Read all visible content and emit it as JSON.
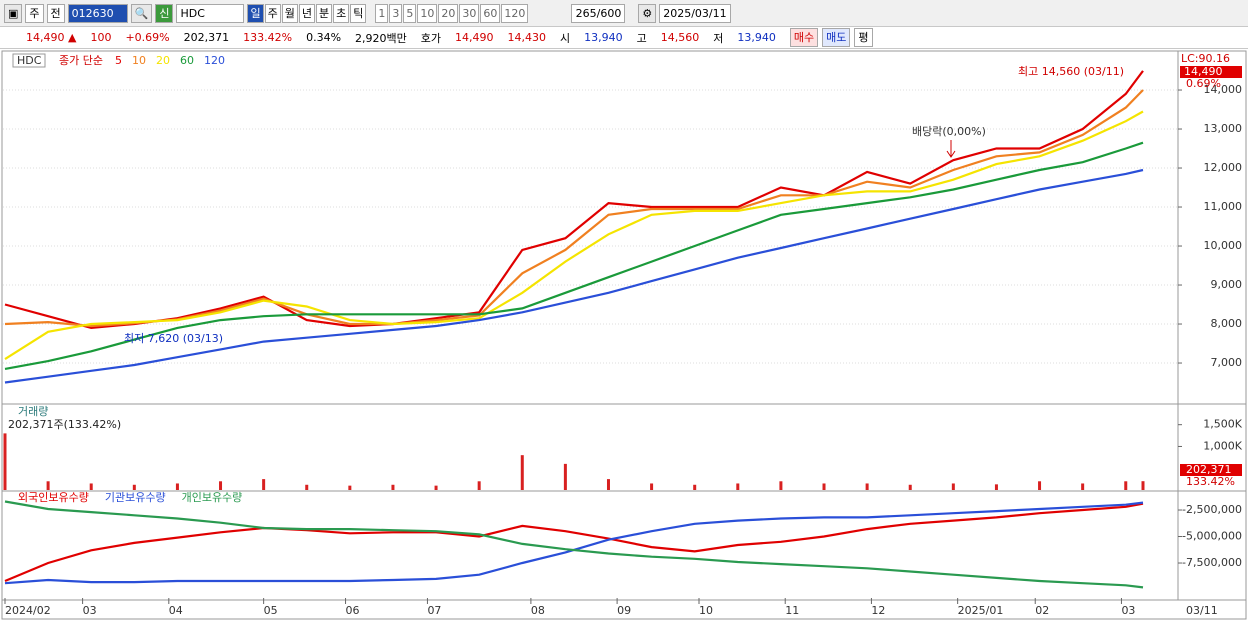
{
  "toolbar": {
    "market": "주",
    "prev": "전",
    "code": "012630",
    "name": "HDC",
    "credit": "신",
    "periods": [
      "일",
      "주",
      "월",
      "년",
      "분",
      "초",
      "틱"
    ],
    "minutes": [
      "1",
      "3",
      "5",
      "10",
      "20",
      "30",
      "60",
      "120"
    ],
    "count": "265/600",
    "date": "2025/03/11"
  },
  "info_bar": {
    "price": "14,490 ▲",
    "change": "100",
    "change_rate": "+0.69%",
    "volume": "202,371",
    "volume_rate": "133.42%",
    "turnover": "0.34%",
    "amount": "2,920백만",
    "quote_label": "호가",
    "ask": "14,490",
    "bid": "14,430",
    "open_label": "시",
    "open": "13,940",
    "high_label": "고",
    "high": "14,560",
    "low_label": "저",
    "low": "13,940",
    "buy": "매수",
    "sell": "매도",
    "avg": "평"
  },
  "chart_data": [
    {
      "type": "line",
      "name": "HDC",
      "legend_title": "종가 단순",
      "lc_label": "LC:90.16",
      "last_label": "14,490",
      "rate_label": "0.69%",
      "annotations": {
        "high": "최고 14,560 (03/11)",
        "low": "최저 7,620 (03/13)",
        "dividend": "배당락(0,00%)"
      },
      "x": [
        0,
        10,
        20,
        30,
        40,
        50,
        60,
        70,
        80,
        90,
        100,
        110,
        120,
        130,
        140,
        150,
        160,
        170,
        180,
        190,
        200,
        210,
        220,
        230,
        240,
        250,
        260,
        264
      ],
      "xlim": [
        0,
        264
      ],
      "ylim": [
        5975,
        14975
      ],
      "grid": true,
      "yticks": [
        {
          "value": 7000,
          "label": "7,000"
        },
        {
          "value": 8000,
          "label": "8,000"
        },
        {
          "value": 9000,
          "label": "9,000"
        },
        {
          "value": 10000,
          "label": "10,000"
        },
        {
          "value": 11000,
          "label": "11,000"
        },
        {
          "value": 12000,
          "label": "12,000"
        },
        {
          "value": 13000,
          "label": "13,000"
        },
        {
          "value": 14000,
          "label": "14,000"
        }
      ],
      "series": [
        {
          "name": "5",
          "color": "#e00000",
          "values": [
            8500,
            8200,
            7900,
            8000,
            8150,
            8400,
            8700,
            8100,
            7950,
            8000,
            8150,
            8300,
            9900,
            10200,
            11100,
            11000,
            11000,
            11000,
            11500,
            11300,
            11900,
            11600,
            12200,
            12500,
            12500,
            13000,
            13900,
            14490
          ]
        },
        {
          "name": "10",
          "color": "#f08020",
          "values": [
            8000,
            8050,
            7950,
            8020,
            8120,
            8350,
            8650,
            8250,
            8000,
            8000,
            8100,
            8220,
            9300,
            9900,
            10800,
            10950,
            10950,
            10950,
            11300,
            11300,
            11650,
            11500,
            11950,
            12300,
            12400,
            12850,
            13550,
            14000
          ]
        },
        {
          "name": "20",
          "color": "#f5e400",
          "values": [
            7100,
            7800,
            8000,
            8050,
            8100,
            8300,
            8600,
            8450,
            8100,
            8000,
            8050,
            8150,
            8800,
            9600,
            10300,
            10800,
            10900,
            10900,
            11100,
            11300,
            11400,
            11400,
            11700,
            12100,
            12300,
            12700,
            13200,
            13450
          ]
        },
        {
          "name": "60",
          "color": "#1a9a3a",
          "values": [
            6850,
            7050,
            7300,
            7600,
            7900,
            8100,
            8200,
            8250,
            8250,
            8250,
            8250,
            8250,
            8400,
            8800,
            9200,
            9600,
            10000,
            10400,
            10800,
            10950,
            11100,
            11250,
            11450,
            11700,
            11950,
            12150,
            12500,
            12650
          ]
        },
        {
          "name": "120",
          "color": "#2a4fd8",
          "values": [
            6500,
            6650,
            6800,
            6950,
            7150,
            7350,
            7550,
            7650,
            7750,
            7850,
            7950,
            8100,
            8300,
            8550,
            8800,
            9100,
            9400,
            9700,
            9950,
            10200,
            10450,
            10700,
            10950,
            11200,
            11450,
            11650,
            11850,
            11950
          ]
        }
      ]
    },
    {
      "type": "bar",
      "title": "거래량",
      "subtitle": "202,371주(133.42%)",
      "last_label": "202,371",
      "rate_label": "133.42%",
      "color": "#d82020",
      "x": [
        0,
        10,
        20,
        30,
        40,
        50,
        60,
        70,
        80,
        90,
        100,
        110,
        120,
        130,
        140,
        150,
        160,
        170,
        180,
        190,
        200,
        210,
        220,
        230,
        240,
        250,
        260,
        264
      ],
      "xlim": [
        0,
        264
      ],
      "ylim": [
        0,
        1952000
      ],
      "yticks": [
        {
          "value": 1000000,
          "label": "1,000K"
        },
        {
          "value": 1500000,
          "label": "1,500K"
        }
      ],
      "values": [
        1300000,
        200000,
        150000,
        120000,
        150000,
        200000,
        250000,
        120000,
        100000,
        120000,
        100000,
        200000,
        800000,
        600000,
        250000,
        150000,
        120000,
        150000,
        200000,
        150000,
        150000,
        120000,
        150000,
        130000,
        200000,
        150000,
        200000,
        202371
      ]
    },
    {
      "type": "line",
      "x": [
        0,
        10,
        20,
        30,
        40,
        50,
        60,
        70,
        80,
        90,
        100,
        110,
        120,
        130,
        140,
        150,
        160,
        170,
        180,
        190,
        200,
        210,
        220,
        230,
        240,
        250,
        260,
        264
      ],
      "xlim": [
        0,
        264
      ],
      "ylim": [
        -10800000,
        -800000
      ],
      "end_label": "03/11",
      "yticks": [
        {
          "value": -2500000,
          "label": "-2,500,000"
        },
        {
          "value": -5000000,
          "label": "-5,000,000"
        },
        {
          "value": -7500000,
          "label": "-7,500,000"
        }
      ],
      "xticks": [
        {
          "value": 0,
          "label": "2024/02"
        },
        {
          "value": 18,
          "label": "03"
        },
        {
          "value": 38,
          "label": "04"
        },
        {
          "value": 60,
          "label": "05"
        },
        {
          "value": 79,
          "label": "06"
        },
        {
          "value": 98,
          "label": "07"
        },
        {
          "value": 122,
          "label": "08"
        },
        {
          "value": 142,
          "label": "09"
        },
        {
          "value": 161,
          "label": "10"
        },
        {
          "value": 181,
          "label": "11"
        },
        {
          "value": 201,
          "label": "12"
        },
        {
          "value": 221,
          "label": "2025/01"
        },
        {
          "value": 239,
          "label": "02"
        },
        {
          "value": 259,
          "label": "03"
        }
      ],
      "series": [
        {
          "name": "외국인보유수량",
          "color": "#e00000",
          "values": [
            -9200000,
            -7500000,
            -6300000,
            -5600000,
            -5100000,
            -4600000,
            -4200000,
            -4400000,
            -4700000,
            -4600000,
            -4600000,
            -5000000,
            -4000000,
            -4500000,
            -5200000,
            -6000000,
            -6400000,
            -5800000,
            -5500000,
            -5000000,
            -4300000,
            -3800000,
            -3500000,
            -3200000,
            -2800000,
            -2500000,
            -2200000,
            -1900000
          ]
        },
        {
          "name": "기관보유수량",
          "color": "#2a4fd8",
          "values": [
            -9400000,
            -9100000,
            -9300000,
            -9300000,
            -9200000,
            -9200000,
            -9200000,
            -9200000,
            -9200000,
            -9100000,
            -9000000,
            -8600000,
            -7500000,
            -6500000,
            -5300000,
            -4500000,
            -3800000,
            -3500000,
            -3300000,
            -3200000,
            -3200000,
            -3000000,
            -2800000,
            -2600000,
            -2400000,
            -2200000,
            -2000000,
            -1800000
          ]
        },
        {
          "name": "개인보유수량",
          "color": "#2a9a50",
          "values": [
            -1700000,
            -2400000,
            -2700000,
            -3000000,
            -3300000,
            -3700000,
            -4200000,
            -4300000,
            -4300000,
            -4400000,
            -4500000,
            -4800000,
            -5700000,
            -6200000,
            -6600000,
            -6900000,
            -7100000,
            -7400000,
            -7600000,
            -7800000,
            -8000000,
            -8300000,
            -8600000,
            -8900000,
            -9200000,
            -9400000,
            -9600000,
            -9800000
          ]
        }
      ]
    }
  ]
}
